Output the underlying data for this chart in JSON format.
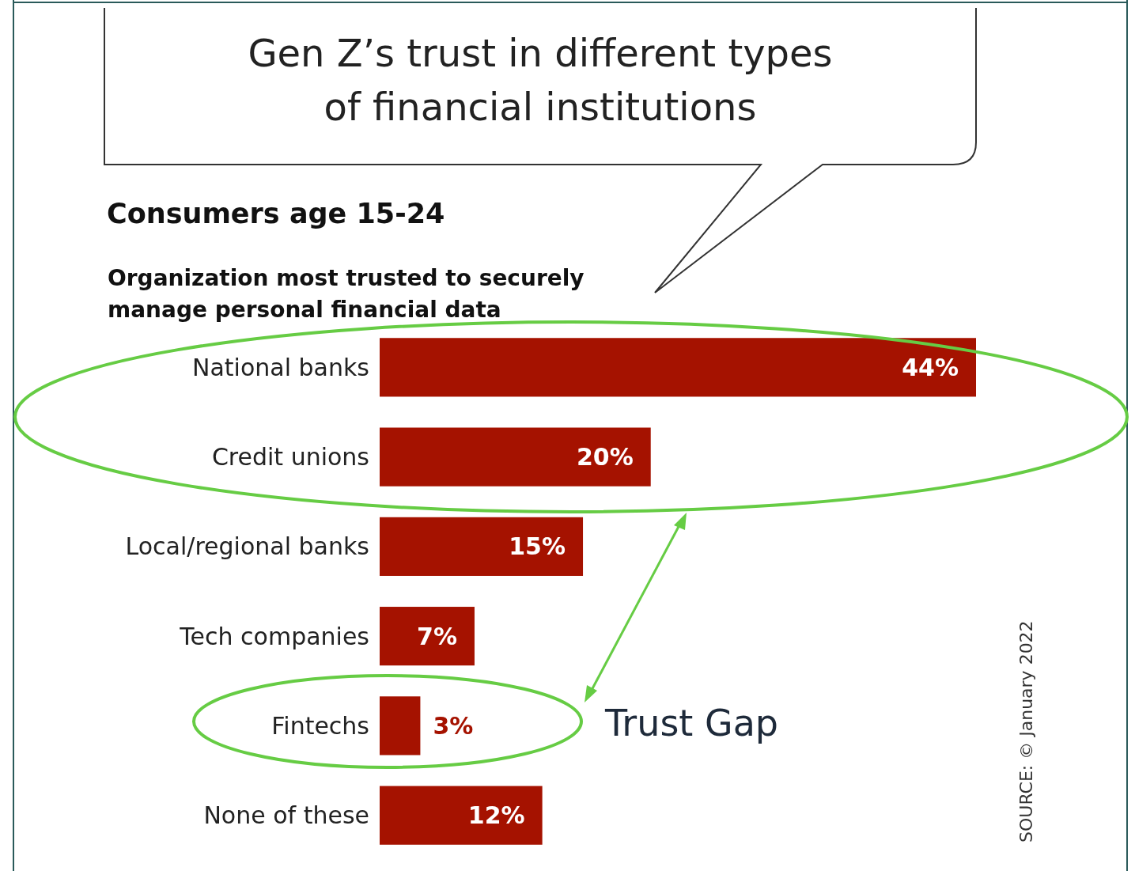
{
  "chart_data": {
    "type": "bar",
    "orientation": "horizontal",
    "title": "Gen Z’s trust in different types of financial institutions",
    "subtitle": "Consumers age 15-24",
    "categories": [
      "National banks",
      "Credit unions",
      "Local/regional banks",
      "Tech companies",
      "Fintechs",
      "None of these"
    ],
    "values": [
      44,
      20,
      15,
      7,
      3,
      12
    ],
    "value_labels": [
      "44%",
      "20%",
      "15%",
      "7%",
      "3%",
      "12%"
    ],
    "color": "#a51200",
    "annotations": [
      "Organization most trusted to securely manage personal financial data",
      "Trust Gap",
      "SOURCE: © January 2022"
    ]
  }
}
